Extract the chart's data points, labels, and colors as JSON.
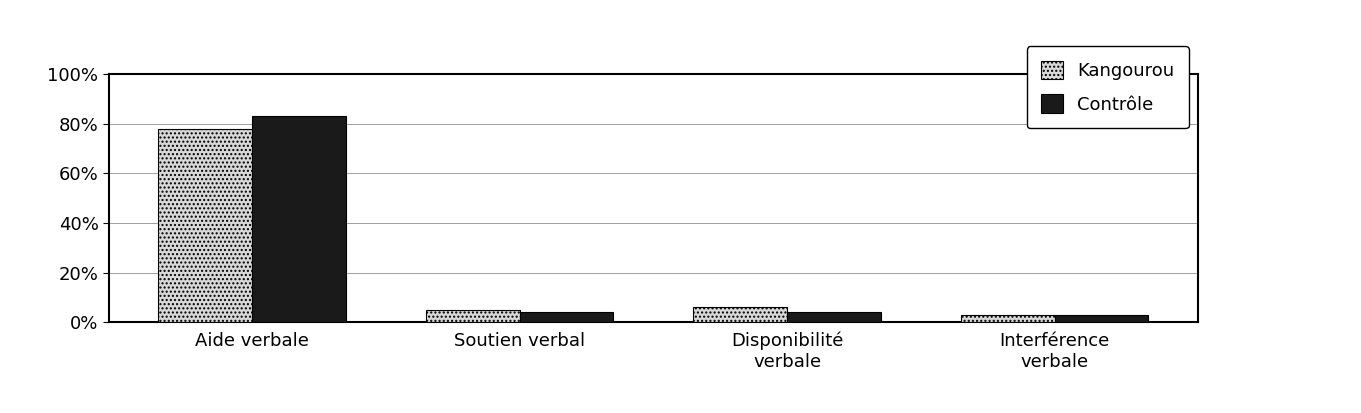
{
  "categories": [
    "Aide verbale",
    "Soutien verbal",
    "Disponibilité\nverbale",
    "Interférence\nverbale"
  ],
  "kangourou_values": [
    0.78,
    0.05,
    0.06,
    0.03
  ],
  "controle_values": [
    0.83,
    0.04,
    0.04,
    0.03
  ],
  "kangourou_color": "#d8d8d8",
  "controle_color": "#1a1a1a",
  "kangourou_hatch": "....",
  "controle_hatch": "....",
  "ylim": [
    0,
    1.0
  ],
  "yticks": [
    0.0,
    0.2,
    0.4,
    0.6,
    0.8,
    1.0
  ],
  "ytick_labels": [
    "0%",
    "20%",
    "40%",
    "60%",
    "80%",
    "100%"
  ],
  "legend_kangourou": "Kangourou",
  "legend_controle": "Contrôle",
  "bar_width": 0.35,
  "figsize": [
    13.61,
    4.13
  ],
  "dpi": 100,
  "background_color": "#ffffff",
  "grid_color": "#a0a0a0",
  "font_size": 13,
  "legend_font_size": 13
}
